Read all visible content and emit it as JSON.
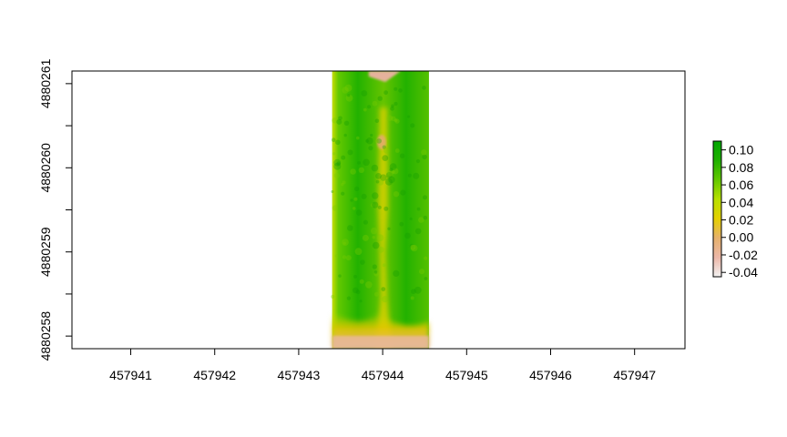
{
  "chart_data": {
    "type": "heatmap",
    "title": "",
    "xlabel": "",
    "ylabel": "",
    "xlim": [
      457940.3,
      457947.6
    ],
    "ylim": [
      4880257.85,
      4880261.15
    ],
    "x_ticks": [
      457941,
      457942,
      457943,
      457944,
      457945,
      457946,
      457947
    ],
    "x_tick_labels": [
      "457941",
      "457942",
      "457943",
      "457944",
      "457945",
      "457946",
      "457947"
    ],
    "y_ticks": [
      4880258,
      4880258.5,
      4880259,
      4880259.5,
      4880260,
      4880260.5,
      4880261
    ],
    "y_tick_labels": [
      "4880258",
      "4880259",
      "4880260",
      "4880261"
    ],
    "y_labeled_ticks": [
      4880258,
      4880259,
      4880260,
      4880261
    ],
    "raster_extent": {
      "xmin": 457943.4,
      "xmax": 457944.55,
      "ymin": 4880257.85,
      "ymax": 4880261.15
    },
    "grid": false,
    "legend": {
      "position": "right",
      "range": [
        -0.045,
        0.11
      ],
      "ticks": [
        0.1,
        0.08,
        0.06,
        0.04,
        0.02,
        0.0,
        -0.02,
        -0.04
      ],
      "tick_labels": [
        "0.10",
        "0.08",
        "0.06",
        "0.04",
        "0.02",
        "0.00",
        "-0.02",
        "-0.04"
      ],
      "colors": [
        "#f2f2f2",
        "#ecb7a8",
        "#e6b16c",
        "#e5d000",
        "#b8e000",
        "#63c800",
        "#1fb000",
        "#00a600"
      ]
    },
    "value_summary": {
      "plant_rows": "high values ~0.07-0.10 (green)",
      "center_strip": "~0.02-0.04 (yellow)",
      "bottom_edge": "~-0.01 to 0.00 (tan)"
    }
  }
}
